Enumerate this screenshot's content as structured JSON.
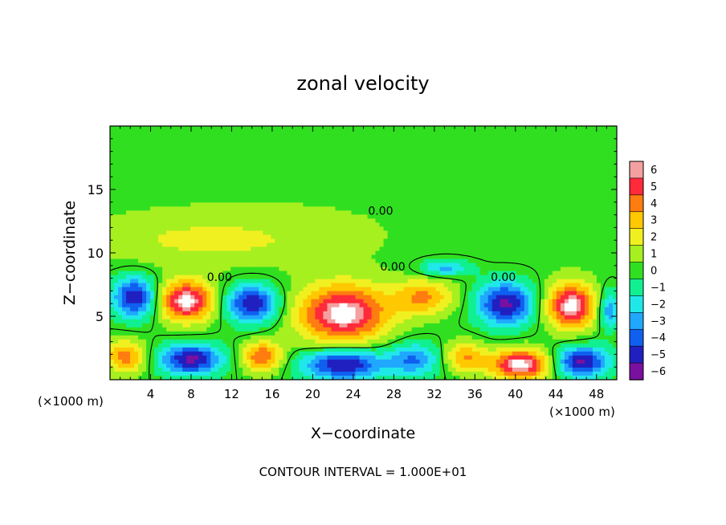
{
  "chart_data": {
    "type": "heatmap",
    "title": "zonal velocity",
    "xlabel": "X−coordinate",
    "ylabel": "Z−coordinate",
    "xlim": [
      0,
      50
    ],
    "ylim": [
      0,
      20
    ],
    "x_ticks": [
      "4",
      "8",
      "12",
      "16",
      "20",
      "24",
      "28",
      "32",
      "36",
      "40",
      "44",
      "48"
    ],
    "x_tick_values": [
      4,
      8,
      12,
      16,
      20,
      24,
      28,
      32,
      36,
      40,
      44,
      48
    ],
    "y_ticks": [
      "5",
      "10",
      "15"
    ],
    "y_tick_values": [
      5,
      10,
      15
    ],
    "x_unit_left": "(×1000 m)",
    "x_unit_right": "(×1000 m)",
    "footer": "CONTOUR INTERVAL = 1.000E+01",
    "contour_labels": [
      {
        "text": "0.00",
        "x": 26.7,
        "y": 13.0
      },
      {
        "text": "0.00",
        "x": 27.9,
        "y": 8.6
      },
      {
        "text": "0.00",
        "x": 10.8,
        "y": 7.8
      },
      {
        "text": "0.00",
        "x": 38.8,
        "y": 7.8
      }
    ],
    "colorbar": {
      "labels": [
        "6",
        "5",
        "4",
        "3",
        "2",
        "1",
        "0",
        "−1",
        "−2",
        "−3",
        "−4",
        "−5",
        "−6"
      ],
      "values": [
        6,
        5,
        4,
        3,
        2,
        1,
        0,
        -1,
        -2,
        -3,
        -4,
        -5,
        -6
      ],
      "colors": [
        "#f4a0a0",
        "#ff2a3a",
        "#ff7c10",
        "#ffc800",
        "#f0f020",
        "#a6f020",
        "#30e020",
        "#10f090",
        "#20e8e8",
        "#20a8ff",
        "#1060f0",
        "#2020c0",
        "#7a10a0"
      ]
    },
    "regions": [
      {
        "x": 25,
        "y": 15,
        "rx": 30,
        "ry": 7,
        "v": 0.4
      },
      {
        "x": 10,
        "y": 11,
        "rx": 12,
        "ry": 2,
        "v": 1.6
      },
      {
        "x": 2.5,
        "y": 6.5,
        "rx": 2.2,
        "ry": 1.6,
        "v": -5.5
      },
      {
        "x": 7.5,
        "y": 6.2,
        "rx": 2.8,
        "ry": 1.6,
        "v": 6.5
      },
      {
        "x": 14.0,
        "y": 6.0,
        "rx": 2.6,
        "ry": 1.5,
        "v": -5.5
      },
      {
        "x": 23.0,
        "y": 5.2,
        "rx": 4.5,
        "ry": 2.3,
        "v": 6.5
      },
      {
        "x": 31.0,
        "y": 6.5,
        "rx": 3.0,
        "ry": 1.4,
        "v": 3.5
      },
      {
        "x": 33.0,
        "y": 8.8,
        "rx": 2.5,
        "ry": 0.7,
        "v": -3.0
      },
      {
        "x": 39.0,
        "y": 6.0,
        "rx": 2.8,
        "ry": 1.7,
        "v": -5.8
      },
      {
        "x": 45.5,
        "y": 5.8,
        "rx": 2.4,
        "ry": 1.8,
        "v": 6.5
      },
      {
        "x": 1.5,
        "y": 1.8,
        "rx": 2.0,
        "ry": 1.3,
        "v": 4.0
      },
      {
        "x": 8.0,
        "y": 1.6,
        "rx": 3.0,
        "ry": 1.2,
        "v": -5.8
      },
      {
        "x": 15.0,
        "y": 1.8,
        "rx": 2.0,
        "ry": 1.2,
        "v": 4.5
      },
      {
        "x": 23.0,
        "y": 1.2,
        "rx": 4.0,
        "ry": 1.2,
        "v": -5.8
      },
      {
        "x": 30.0,
        "y": 1.6,
        "rx": 2.5,
        "ry": 1.3,
        "v": -3.5
      },
      {
        "x": 35.0,
        "y": 1.8,
        "rx": 2.0,
        "ry": 1.2,
        "v": 3.5
      },
      {
        "x": 40.5,
        "y": 1.2,
        "rx": 3.0,
        "ry": 1.2,
        "v": 6.5
      },
      {
        "x": 46.5,
        "y": 1.4,
        "rx": 2.6,
        "ry": 1.2,
        "v": -5.8
      },
      {
        "x": 49.2,
        "y": 5.5,
        "rx": 1.0,
        "ry": 1.5,
        "v": -3.5
      }
    ]
  }
}
